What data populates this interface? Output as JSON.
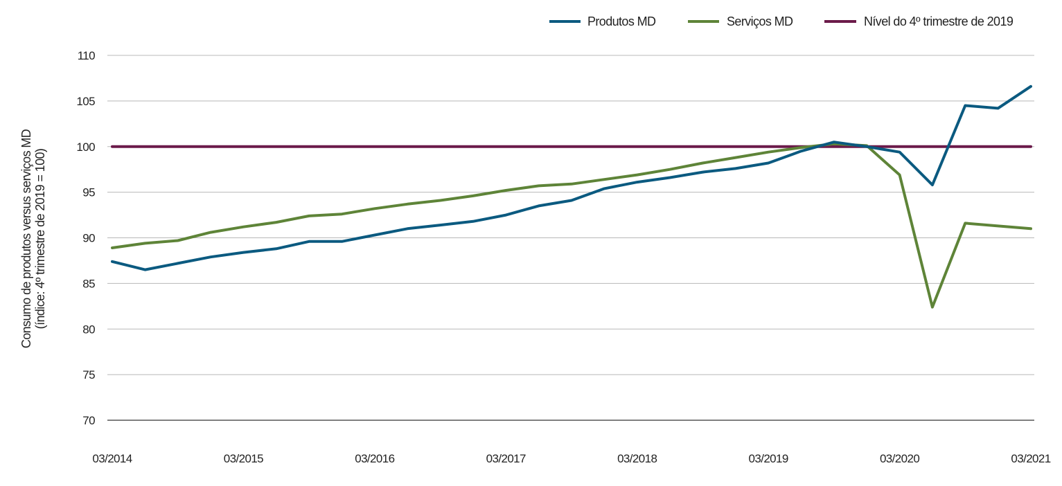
{
  "chart_data": {
    "type": "line",
    "title": "",
    "xlabel": "",
    "ylabel": [
      "Consumo de produtos versus serviços MD",
      "(índice: 4º trimestre de 2019 = 100)"
    ],
    "ylim": [
      70,
      110
    ],
    "yticks": [
      70,
      75,
      80,
      85,
      90,
      95,
      100,
      105,
      110
    ],
    "xtick_labels": [
      "03/2014",
      "03/2015",
      "03/2016",
      "03/2017",
      "03/2018",
      "03/2019",
      "03/2020",
      "03/2021"
    ],
    "x": [
      "03/2014",
      "06/2014",
      "09/2014",
      "12/2014",
      "03/2015",
      "06/2015",
      "09/2015",
      "12/2015",
      "03/2016",
      "06/2016",
      "09/2016",
      "12/2016",
      "03/2017",
      "06/2017",
      "09/2017",
      "12/2017",
      "03/2018",
      "06/2018",
      "09/2018",
      "12/2018",
      "03/2019",
      "06/2019",
      "09/2019",
      "12/2019",
      "03/2020",
      "06/2020",
      "09/2020",
      "12/2020",
      "03/2021"
    ],
    "grid": true,
    "legend_position": "top-right",
    "series": [
      {
        "name": "Produtos MD",
        "color": "#0b5a80",
        "values": [
          87.4,
          86.5,
          87.2,
          87.9,
          88.4,
          88.8,
          89.6,
          89.6,
          90.3,
          91.0,
          91.4,
          91.8,
          92.5,
          93.5,
          94.1,
          95.4,
          96.1,
          96.6,
          97.2,
          97.6,
          98.2,
          99.5,
          100.5,
          100.0,
          99.4,
          95.8,
          104.5,
          104.2,
          106.6
        ]
      },
      {
        "name": "Serviços MD",
        "color": "#5e8438",
        "values": [
          88.9,
          89.4,
          89.7,
          90.6,
          91.2,
          91.7,
          92.4,
          92.6,
          93.2,
          93.7,
          94.1,
          94.6,
          95.2,
          95.7,
          95.9,
          96.4,
          96.9,
          97.5,
          98.2,
          98.8,
          99.4,
          99.9,
          100.3,
          100.1,
          96.9,
          82.4,
          91.6,
          91.3,
          91.0
        ]
      },
      {
        "name": "Nível do 4º trimestre de 2019",
        "color": "#6b1a4a",
        "values": [
          100,
          100,
          100,
          100,
          100,
          100,
          100,
          100,
          100,
          100,
          100,
          100,
          100,
          100,
          100,
          100,
          100,
          100,
          100,
          100,
          100,
          100,
          100,
          100,
          100,
          100,
          100,
          100,
          100
        ]
      }
    ]
  }
}
